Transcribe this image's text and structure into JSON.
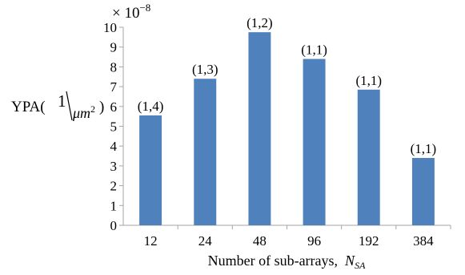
{
  "chart_data": {
    "type": "bar",
    "title": "",
    "multiplier": {
      "prefix": "× 10",
      "exponent": "−8"
    },
    "ylabel": {
      "prefix": "YPA(",
      "numerator": "1",
      "denominator_base": "μm",
      "denominator_exp": "2",
      "suffix": ")"
    },
    "xlabel": {
      "text": "Number of sub-arrays,",
      "symbol": "N",
      "subscript": "SA"
    },
    "ylim": [
      0,
      10
    ],
    "yticks": [
      "0",
      "1",
      "2",
      "3",
      "4",
      "5",
      "6",
      "7",
      "8",
      "9",
      "10"
    ],
    "categories": [
      "12",
      "24",
      "48",
      "96",
      "192",
      "384"
    ],
    "values": [
      5.55,
      7.4,
      9.75,
      8.4,
      6.85,
      3.4
    ],
    "data_labels": [
      "(1,4)",
      "(1,3)",
      "(1,2)",
      "(1,1)",
      "(1,1)",
      "(1,1)"
    ],
    "bar_color": "#4f81bd",
    "grid": false
  }
}
